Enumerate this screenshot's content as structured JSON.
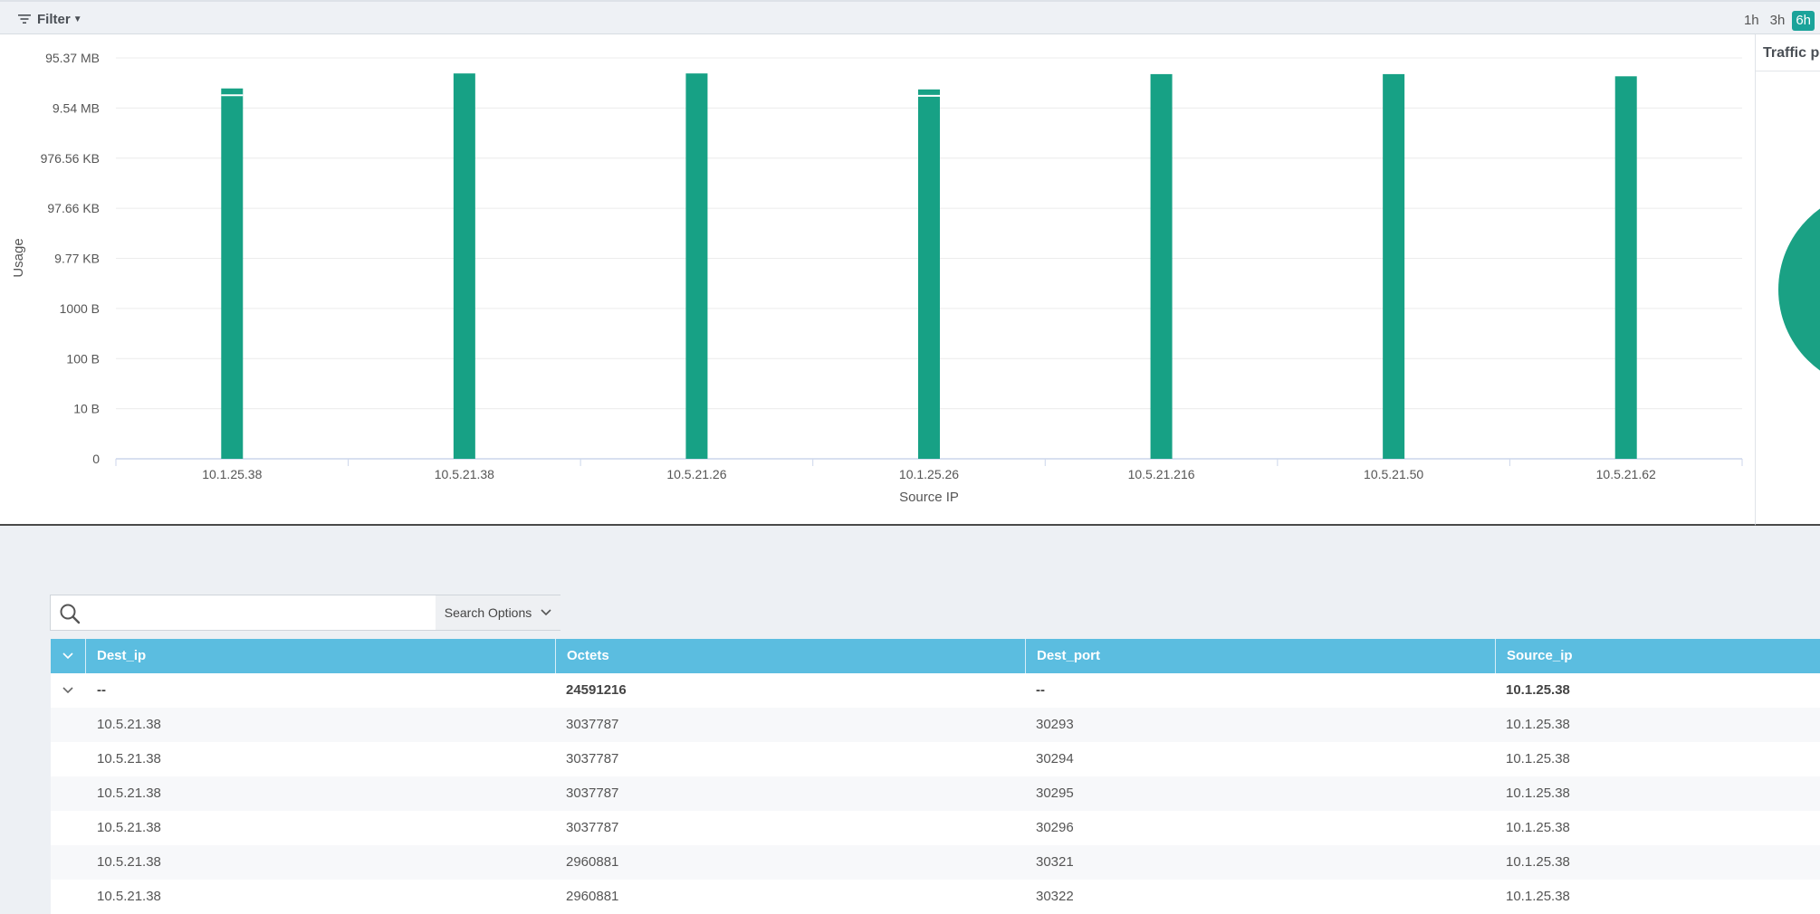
{
  "toolbar": {
    "filter_label": "Filter",
    "time_ranges": [
      "1h",
      "3h",
      "6h"
    ],
    "active_range": "6h",
    "accent_color": "#1aa39a"
  },
  "side_panel": {
    "title": "Traffic per"
  },
  "chart_data": {
    "type": "bar",
    "xlabel": "Source IP",
    "ylabel": "Usage",
    "y_scale": "log",
    "y_ticks": [
      "95.37 MB",
      "9.54 MB",
      "976.56 KB",
      "97.66 KB",
      "9.77 KB",
      "1000 B",
      "100 B",
      "10 B",
      "0"
    ],
    "categories": [
      "10.1.25.38",
      "10.5.21.38",
      "10.5.21.26",
      "10.1.25.26",
      "10.5.21.216",
      "10.5.21.50",
      "10.5.21.62"
    ],
    "values": [
      24591216,
      49000000,
      49000000,
      23500000,
      47500000,
      47500000,
      43000000
    ],
    "segment_divider_at": [
      18000000,
      null,
      null,
      17500000,
      null,
      null,
      null
    ],
    "bar_color": "#17a185",
    "grid": true
  },
  "search": {
    "placeholder": "",
    "options_label": "Search Options"
  },
  "table": {
    "columns": [
      "Dest_ip",
      "Octets",
      "Dest_port",
      "Source_ip"
    ],
    "group_row": [
      "--",
      "24591216",
      "--",
      "10.1.25.38"
    ],
    "rows": [
      [
        "10.5.21.38",
        "3037787",
        "30293",
        "10.1.25.38"
      ],
      [
        "10.5.21.38",
        "3037787",
        "30294",
        "10.1.25.38"
      ],
      [
        "10.5.21.38",
        "3037787",
        "30295",
        "10.1.25.38"
      ],
      [
        "10.5.21.38",
        "3037787",
        "30296",
        "10.1.25.38"
      ],
      [
        "10.5.21.38",
        "2960881",
        "30321",
        "10.1.25.38"
      ],
      [
        "10.5.21.38",
        "2960881",
        "30322",
        "10.1.25.38"
      ]
    ]
  }
}
